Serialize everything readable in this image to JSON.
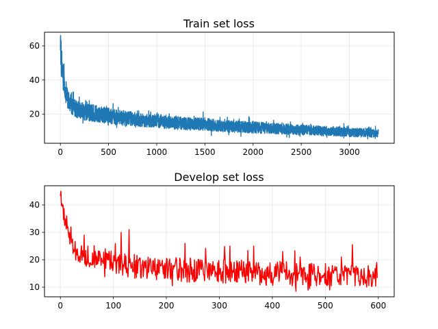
{
  "chart_data": [
    {
      "type": "line",
      "title": "Train set loss",
      "xlabel": "",
      "ylabel": "",
      "xlim": [
        -165,
        3465
      ],
      "ylim": [
        3,
        68
      ],
      "x_ticks": [
        0,
        500,
        1000,
        1500,
        2000,
        2500,
        3000
      ],
      "y_ticks": [
        20,
        40,
        60
      ],
      "grid": true,
      "color": "#1f77b4",
      "series": [
        {
          "x": [
            0,
            10,
            20,
            30,
            40,
            50,
            60,
            70,
            80,
            100,
            120,
            150,
            200,
            250,
            300,
            350,
            400,
            450,
            500,
            550,
            600,
            700,
            800,
            900,
            1000,
            1100,
            1200,
            1300,
            1400,
            1500,
            1600,
            1700,
            1800,
            1900,
            2000,
            2100,
            2200,
            2300,
            2400,
            2500,
            2600,
            2700,
            2800,
            2900,
            3000,
            3100,
            3200,
            3300
          ],
          "values": [
            60,
            50,
            44,
            40,
            37,
            34,
            32,
            30,
            28.5,
            26.5,
            25,
            23.5,
            22,
            21.5,
            21,
            20.5,
            20,
            19.5,
            19,
            18.5,
            18,
            17.5,
            17,
            16.5,
            16,
            15.5,
            15,
            14.5,
            14.2,
            14,
            13.5,
            13,
            12.8,
            12.5,
            12.2,
            12,
            11.7,
            11.5,
            11,
            10.8,
            10.5,
            10.2,
            10,
            9.8,
            9.5,
            9.2,
            9,
            8.8
          ],
          "spread": [
            8,
            8,
            7,
            7,
            6.5,
            6,
            6,
            5.5,
            5.5,
            5.5,
            5,
            5,
            5,
            5,
            5,
            5,
            4.8,
            4.8,
            4.6,
            4.6,
            4.5,
            4.3,
            4.2,
            4.1,
            4,
            4,
            3.9,
            3.8,
            3.8,
            3.7,
            3.6,
            3.5,
            3.5,
            3.4,
            3.4,
            3.3,
            3.2,
            3.2,
            3.1,
            3,
            3,
            2.9,
            2.8,
            2.8,
            2.7,
            2.6,
            2.6,
            2.5
          ],
          "peaks": [
            [
              3,
              66
            ],
            [
              8,
              63
            ],
            [
              15,
              57
            ],
            [
              30,
              49
            ],
            [
              60,
              39
            ],
            [
              130,
              33
            ],
            [
              300,
              28
            ],
            [
              600,
              24
            ],
            [
              800,
              22
            ],
            [
              1000,
              20
            ],
            [
              1200,
              19
            ],
            [
              1500,
              18
            ],
            [
              1800,
              17
            ],
            [
              2000,
              16
            ],
            [
              2300,
              15
            ],
            [
              2600,
              14
            ],
            [
              2900,
              13
            ],
            [
              3270,
              13
            ]
          ]
        }
      ]
    },
    {
      "type": "line",
      "title": "Develop set loss",
      "xlabel": "",
      "ylabel": "",
      "xlim": [
        -30,
        630
      ],
      "ylim": [
        6.5,
        47
      ],
      "x_ticks": [
        0,
        100,
        200,
        300,
        400,
        500,
        600
      ],
      "y_ticks": [
        10,
        20,
        30,
        40
      ],
      "grid": true,
      "color": "#ff0000",
      "series": [
        {
          "x": [
            0,
            2,
            4,
            6,
            8,
            10,
            15,
            20,
            25,
            30,
            40,
            50,
            60,
            70,
            80,
            90,
            100,
            110,
            120,
            130,
            140,
            150,
            160,
            180,
            200,
            220,
            240,
            260,
            280,
            300,
            320,
            340,
            360,
            380,
            400,
            420,
            440,
            460,
            480,
            500,
            520,
            540,
            560,
            580,
            598
          ],
          "values": [
            43,
            40,
            38,
            36,
            35,
            33,
            29,
            26,
            24,
            23,
            22,
            21.5,
            21,
            20.5,
            20.5,
            20,
            19,
            18.5,
            18,
            18,
            17.5,
            17,
            17,
            16.8,
            16.5,
            16.5,
            16.2,
            16,
            16,
            15.8,
            15.5,
            15.5,
            15.3,
            15.2,
            15,
            15,
            14.8,
            14.7,
            14.5,
            14.5,
            14.3,
            14.2,
            14,
            14,
            14
          ],
          "spread": [
            2,
            2.5,
            3,
            3,
            3.5,
            3.5,
            4,
            4,
            4,
            4,
            4,
            4,
            4,
            4,
            4,
            4,
            4.5,
            4.5,
            4.5,
            4.5,
            4.5,
            4.5,
            4.5,
            4.5,
            4.5,
            4.5,
            4.5,
            4.5,
            4.5,
            4.5,
            4.5,
            4.5,
            4.5,
            4.5,
            4.5,
            4.5,
            4.5,
            4.5,
            4,
            4,
            4,
            4,
            4,
            4,
            4
          ],
          "peaks": [
            [
              1,
              45
            ],
            [
              5,
              40
            ],
            [
              12,
              36
            ],
            [
              20,
              32
            ],
            [
              45,
              29
            ],
            [
              115,
              30
            ],
            [
              130,
              31
            ],
            [
              235,
              26
            ],
            [
              320,
              25
            ],
            [
              365,
              25
            ],
            [
              420,
              23
            ],
            [
              530,
              21
            ],
            [
              551,
              25.5
            ],
            [
              597,
              19
            ]
          ],
          "troughs": [
            [
              445,
              8.5
            ],
            [
              508,
              9
            ],
            [
              470,
              9.5
            ]
          ]
        }
      ]
    }
  ]
}
